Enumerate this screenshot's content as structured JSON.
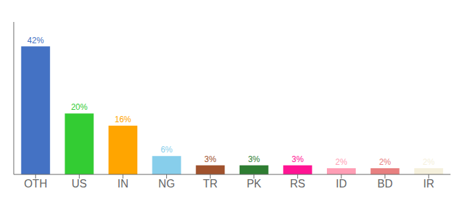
{
  "chart_data": {
    "type": "bar",
    "categories": [
      "OTH",
      "US",
      "IN",
      "NG",
      "TR",
      "PK",
      "RS",
      "ID",
      "BD",
      "IR"
    ],
    "values": [
      42,
      20,
      16,
      6,
      3,
      3,
      3,
      2,
      2,
      2
    ],
    "value_labels": [
      "42%",
      "20%",
      "16%",
      "6%",
      "3%",
      "3%",
      "3%",
      "2%",
      "2%",
      "2%"
    ],
    "colors": [
      "#4472C4",
      "#33CC33",
      "#FFA500",
      "#87CEEB",
      "#A0522D",
      "#2E7D32",
      "#FF1493",
      "#FF9EB5",
      "#E88080",
      "#F5F0DC"
    ],
    "ylim": [
      0,
      50
    ],
    "grid": false,
    "data_labels": true,
    "tick_labels": "x"
  }
}
